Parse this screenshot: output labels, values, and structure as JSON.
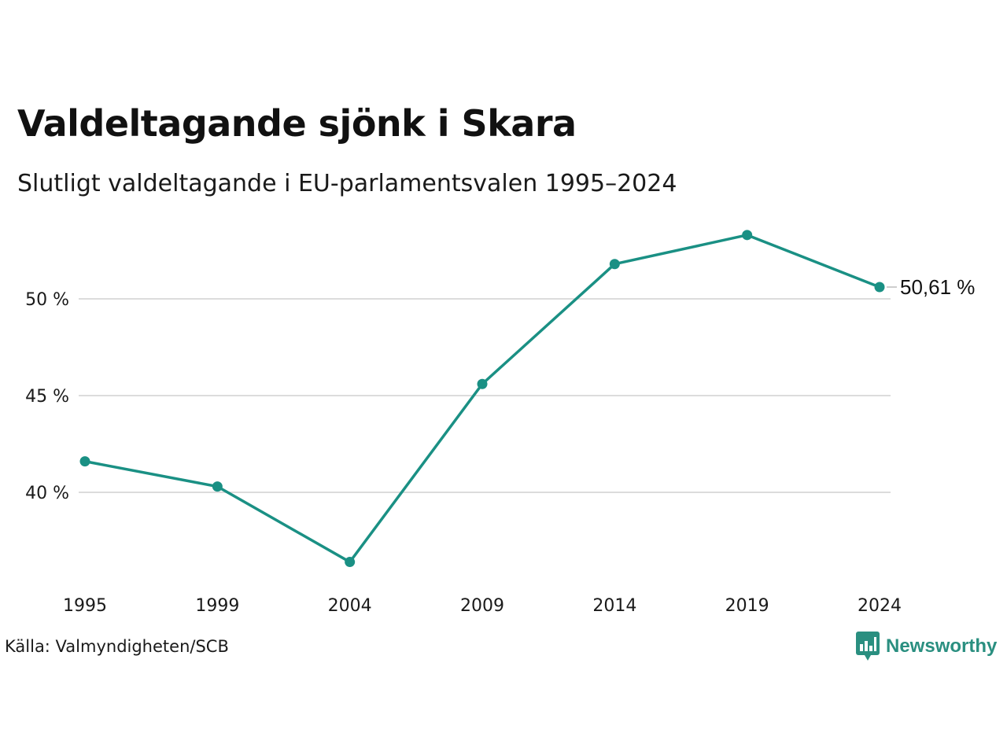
{
  "title": "Valdeltagande sjönk i Skara",
  "subtitle": "Slutligt valdeltagande i EU-parlamentsvalen 1995–2024",
  "source": "Källa: Valmyndigheten/SCB",
  "brand": {
    "name": "Newsworthy",
    "icon": "newsworthy-logo-icon",
    "color": "#2a8f80"
  },
  "chart_data": {
    "type": "line",
    "categories": [
      "1995",
      "1999",
      "2004",
      "2009",
      "2014",
      "2019",
      "2024"
    ],
    "series": [
      {
        "values": [
          41.6,
          40.3,
          36.4,
          45.6,
          51.8,
          53.3,
          50.61
        ],
        "color": "#1a9084"
      }
    ],
    "y_ticks": [
      40,
      45,
      50
    ],
    "y_tick_labels": [
      "40 %",
      "45 %",
      "50 %"
    ],
    "y_range": [
      35.5,
      54
    ],
    "grid": "horizontal",
    "end_label": "50,61 %",
    "xlabel": "",
    "ylabel": ""
  }
}
